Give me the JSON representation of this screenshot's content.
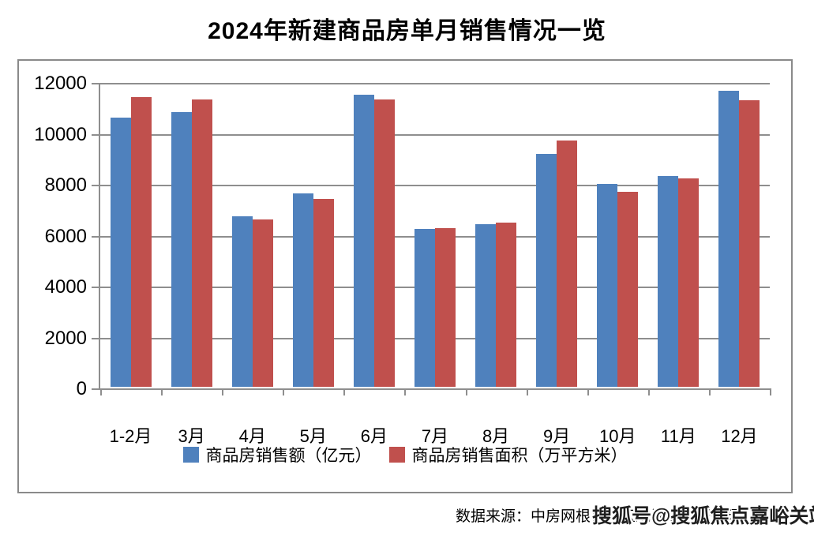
{
  "title": "2024年新建商品房单月销售情况一览",
  "chart_data": {
    "type": "bar",
    "title": "2024年新建商品房单月销售情况一览",
    "categories": [
      "1-2月",
      "3月",
      "4月",
      "5月",
      "6月",
      "7月",
      "8月",
      "9月",
      "10月",
      "11月",
      "12月"
    ],
    "series": [
      {
        "name": "商品房销售额（亿元）",
        "color": "#4F81BD",
        "values": [
          10566,
          10789,
          6712,
          7598,
          11468,
          6197,
          6393,
          9157,
          7975,
          8270,
          11625
        ]
      },
      {
        "name": "商品房销售面积（万平方米）",
        "color": "#C0504D",
        "values": [
          11369,
          11299,
          6584,
          7390,
          11274,
          6233,
          6453,
          9682,
          7646,
          8188,
          11267
        ]
      }
    ],
    "xlabel": "",
    "ylabel": "",
    "ylim": [
      0,
      12000
    ],
    "ytick_step": 2000,
    "yticks": [
      0,
      2000,
      4000,
      6000,
      8000,
      10000,
      12000
    ],
    "grid": true,
    "legend_position": "bottom"
  },
  "footer": {
    "source_text": "数据来源：中房网根据国家统计局数据整理",
    "watermark": "搜狐号@搜狐焦点嘉峪关站"
  },
  "colors": {
    "series_blue": "#4F81BD",
    "series_red": "#C0504D",
    "grid": "#8e8e8e",
    "frame_border": "#8a8a8a",
    "title_text": "#000000"
  }
}
